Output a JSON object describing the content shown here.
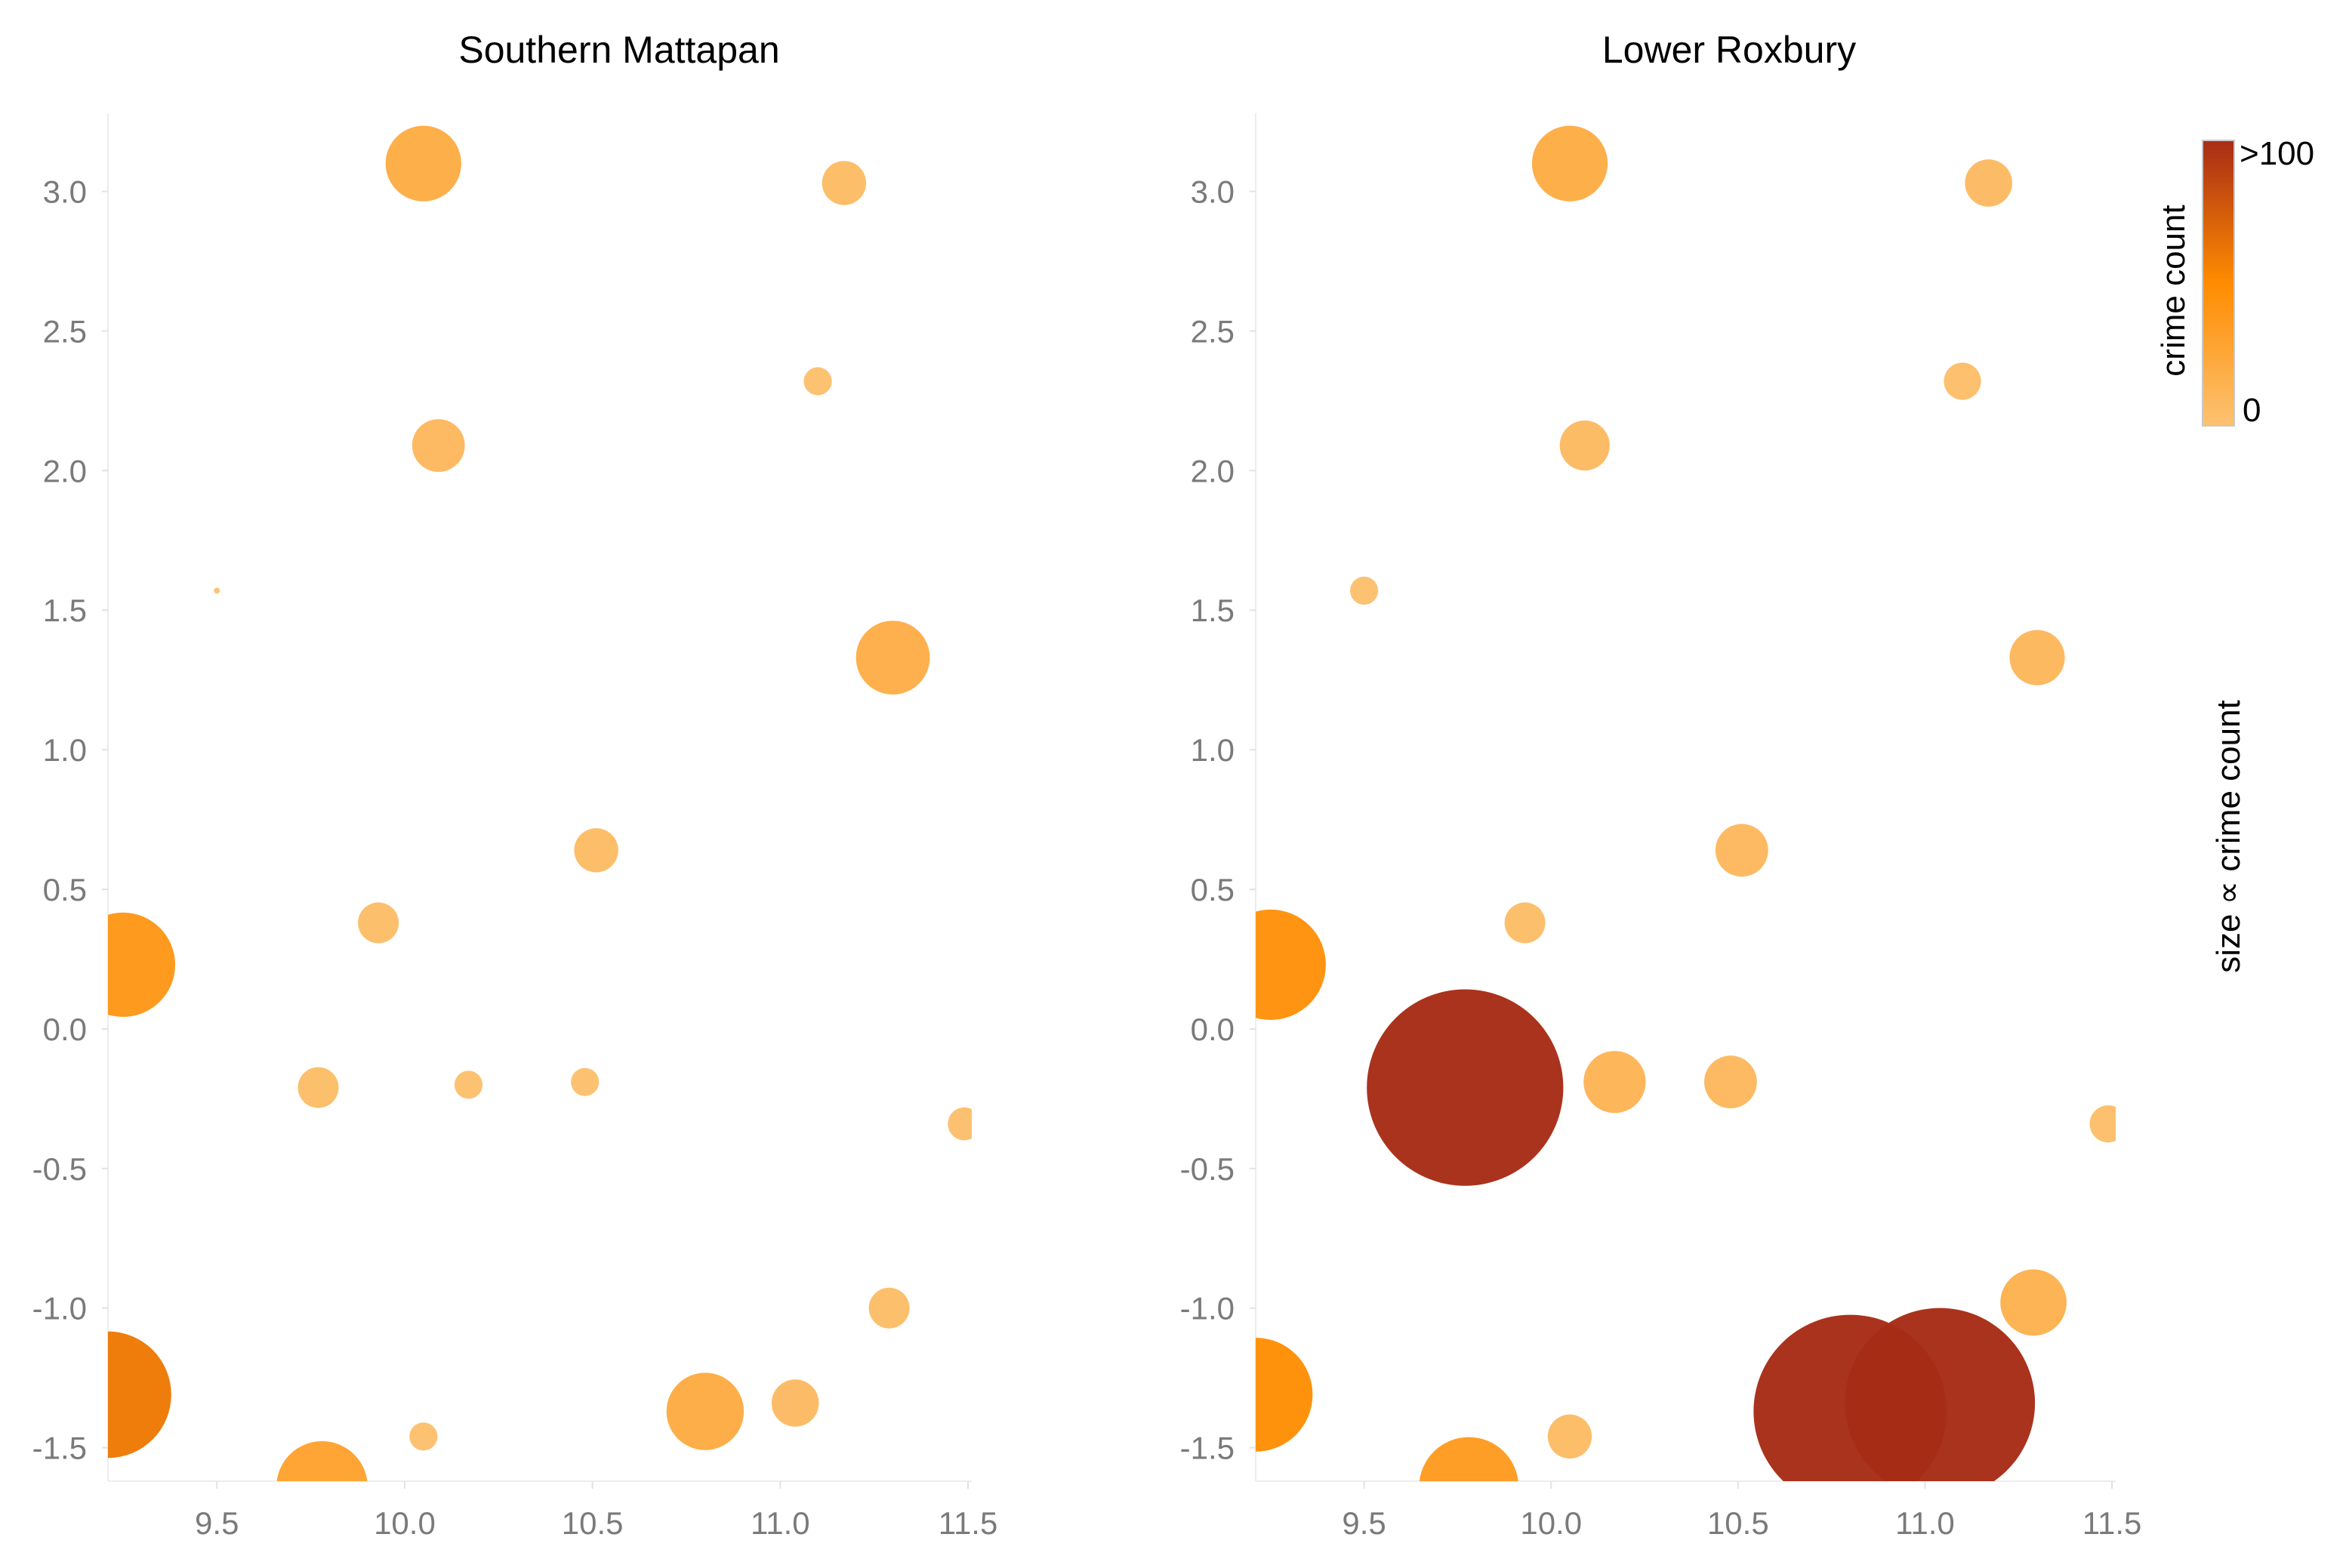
{
  "chart_data": [
    {
      "type": "scatter",
      "title": "Southern Mattapan",
      "xlabel": "",
      "ylabel": "",
      "xlim": [
        9.21,
        11.51
      ],
      "ylim": [
        -1.62,
        3.28
      ],
      "x_ticks": [
        9.5,
        10.0,
        10.5,
        11.0,
        11.5
      ],
      "x_tick_labels": [
        "9.5",
        "10.0",
        "10.5",
        "11.0",
        "11.5"
      ],
      "y_ticks": [
        3.0,
        2.5,
        2.0,
        1.5,
        1.0,
        0.5,
        0.0,
        -0.5,
        -1.0,
        -1.5
      ],
      "y_tick_labels": [
        "3.0",
        "2.5",
        "2.0",
        "1.5",
        "1.0",
        "0.5",
        "0.0",
        "-0.5",
        "-1.0",
        "-1.5"
      ],
      "points": [
        {
          "x": 10.05,
          "y": 3.1,
          "crime_count": 20
        },
        {
          "x": 11.17,
          "y": 3.03,
          "crime_count": 6
        },
        {
          "x": 11.1,
          "y": 2.32,
          "crime_count": 2
        },
        {
          "x": 10.09,
          "y": 2.09,
          "crime_count": 9
        },
        {
          "x": 9.5,
          "y": 1.57,
          "crime_count": 0
        },
        {
          "x": 11.3,
          "y": 1.33,
          "crime_count": 19
        },
        {
          "x": 10.51,
          "y": 0.64,
          "crime_count": 6
        },
        {
          "x": 9.93,
          "y": 0.38,
          "crime_count": 5
        },
        {
          "x": 9.25,
          "y": 0.23,
          "crime_count": 40
        },
        {
          "x": 9.77,
          "y": -0.21,
          "crime_count": 5
        },
        {
          "x": 10.17,
          "y": -0.2,
          "crime_count": 2
        },
        {
          "x": 10.48,
          "y": -0.19,
          "crime_count": 2
        },
        {
          "x": 11.49,
          "y": -0.34,
          "crime_count": 3
        },
        {
          "x": 11.29,
          "y": -1.0,
          "crime_count": 5
        },
        {
          "x": 9.21,
          "y": -1.31,
          "crime_count": 60
        },
        {
          "x": 10.05,
          "y": -1.46,
          "crime_count": 2
        },
        {
          "x": 10.8,
          "y": -1.37,
          "crime_count": 21
        },
        {
          "x": 11.04,
          "y": -1.34,
          "crime_count": 7
        },
        {
          "x": 9.78,
          "y": -1.64,
          "crime_count": 30
        }
      ]
    },
    {
      "type": "scatter",
      "title": "Lower Roxbury",
      "xlabel": "",
      "ylabel": "",
      "xlim": [
        9.21,
        11.51
      ],
      "ylim": [
        -1.62,
        3.28
      ],
      "x_ticks": [
        9.5,
        10.0,
        10.5,
        11.0,
        11.5
      ],
      "x_tick_labels": [
        "9.5",
        "10.0",
        "10.5",
        "11.0",
        "11.5"
      ],
      "y_ticks": [
        3.0,
        2.5,
        2.0,
        1.5,
        1.0,
        0.5,
        0.0,
        -0.5,
        -1.0,
        -1.5
      ],
      "y_tick_labels": [
        "3.0",
        "2.5",
        "2.0",
        "1.5",
        "1.0",
        "0.5",
        "0.0",
        "-0.5",
        "-1.0",
        "-1.5"
      ],
      "points": [
        {
          "x": 10.05,
          "y": 3.1,
          "crime_count": 20
        },
        {
          "x": 11.17,
          "y": 3.03,
          "crime_count": 7
        },
        {
          "x": 11.1,
          "y": 2.32,
          "crime_count": 4
        },
        {
          "x": 10.09,
          "y": 2.09,
          "crime_count": 8
        },
        {
          "x": 9.5,
          "y": 1.57,
          "crime_count": 2
        },
        {
          "x": 11.3,
          "y": 1.33,
          "crime_count": 10
        },
        {
          "x": 10.51,
          "y": 0.64,
          "crime_count": 9
        },
        {
          "x": 9.93,
          "y": 0.38,
          "crime_count": 5
        },
        {
          "x": 9.25,
          "y": 0.23,
          "crime_count": 45
        },
        {
          "x": 9.77,
          "y": -0.21,
          "crime_count": 150
        },
        {
          "x": 10.17,
          "y": -0.19,
          "crime_count": 13
        },
        {
          "x": 10.48,
          "y": -0.19,
          "crime_count": 9
        },
        {
          "x": 11.49,
          "y": -0.34,
          "crime_count": 4
        },
        {
          "x": 11.29,
          "y": -0.98,
          "crime_count": 15
        },
        {
          "x": 9.21,
          "y": -1.31,
          "crime_count": 48
        },
        {
          "x": 10.05,
          "y": -1.46,
          "crime_count": 6
        },
        {
          "x": 10.8,
          "y": -1.37,
          "crime_count": 145
        },
        {
          "x": 11.04,
          "y": -1.34,
          "crime_count": 140
        },
        {
          "x": 9.78,
          "y": -1.64,
          "crime_count": 36
        }
      ]
    }
  ],
  "legend": {
    "color_title": "crime count",
    "color_max_label": ">100",
    "color_min_label": "0",
    "color_min": "#fcc272",
    "color_mid": "#ff8c00",
    "color_max": "#a72c16",
    "size_title": "size ∝ crime count"
  }
}
